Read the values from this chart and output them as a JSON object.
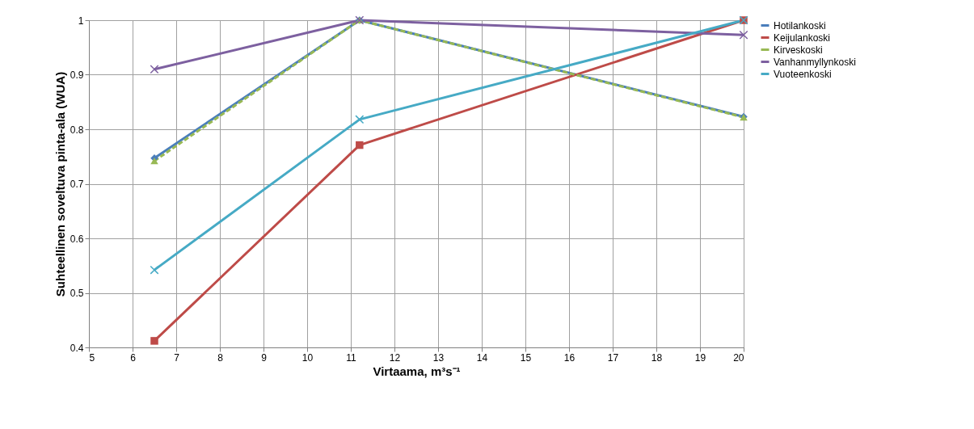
{
  "chart_data": {
    "type": "line",
    "xlabel": "Virtaama, m³s⁻¹",
    "ylabel": "Suhteellinen soveltuva pinta-ala (WUA)",
    "xlim": [
      5,
      20
    ],
    "xticks": [
      5,
      6,
      7,
      8,
      9,
      10,
      11,
      12,
      13,
      14,
      15,
      16,
      17,
      18,
      19,
      20
    ],
    "ylim": [
      0.4,
      1
    ],
    "yticks": [
      0.4,
      0.5,
      0.6,
      0.7,
      0.8,
      0.9,
      1
    ],
    "grid": true,
    "legend": "right",
    "x": [
      6.5,
      11.2,
      20
    ],
    "series": [
      {
        "name": "Hotilankoski",
        "color": "#4a7ebb",
        "marker": "diamond",
        "line_style": "solid",
        "values": [
          0.747,
          1.0,
          0.823
        ]
      },
      {
        "name": "Keijulankoski",
        "color": "#be4b48",
        "marker": "square",
        "line_style": "solid",
        "values": [
          0.412,
          0.771,
          1.0
        ]
      },
      {
        "name": "Kirveskoski",
        "color": "#98b954",
        "marker": "triangle",
        "line_style": "dashed",
        "values": [
          0.742,
          1.0,
          0.822
        ]
      },
      {
        "name": "Vanhanmyllynkoski",
        "color": "#7d60a0",
        "marker": "cross",
        "line_style": "solid",
        "values": [
          0.91,
          1.0,
          0.973
        ]
      },
      {
        "name": "Vuoteenkoski",
        "color": "#46aac5",
        "marker": "cross",
        "line_style": "solid",
        "values": [
          0.542,
          0.818,
          1.0
        ]
      }
    ]
  }
}
